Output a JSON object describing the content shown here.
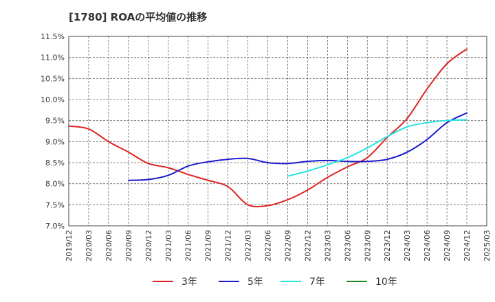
{
  "chart_data": {
    "type": "line",
    "title": "[1780]  ROAの平均値の推移",
    "xlabel": "",
    "ylabel": "",
    "y_ticks": [
      "7.0%",
      "7.5%",
      "8.0%",
      "8.5%",
      "9.0%",
      "9.5%",
      "10.0%",
      "10.5%",
      "11.0%",
      "11.5%"
    ],
    "ylim": [
      7.0,
      11.5
    ],
    "x_ticks": [
      "2019/12",
      "2020/03",
      "2020/06",
      "2020/09",
      "2020/12",
      "2021/03",
      "2021/06",
      "2021/09",
      "2021/12",
      "2022/03",
      "2022/06",
      "2022/09",
      "2022/12",
      "2023/03",
      "2023/06",
      "2023/09",
      "2023/12",
      "2024/03",
      "2024/06",
      "2024/09",
      "2024/12",
      "2025/03"
    ],
    "grid": true,
    "legend_position": "bottom",
    "series": [
      {
        "name": "3年",
        "color": "#dd2222",
        "points": [
          [
            "2019/12",
            9.37
          ],
          [
            "2020/03",
            9.3
          ],
          [
            "2020/06",
            9.0
          ],
          [
            "2020/09",
            8.75
          ],
          [
            "2020/12",
            8.48
          ],
          [
            "2021/03",
            8.38
          ],
          [
            "2021/06",
            8.22
          ],
          [
            "2021/09",
            8.08
          ],
          [
            "2021/12",
            7.93
          ],
          [
            "2022/03",
            7.5
          ],
          [
            "2022/06",
            7.48
          ],
          [
            "2022/09",
            7.62
          ],
          [
            "2022/12",
            7.85
          ],
          [
            "2023/03",
            8.15
          ],
          [
            "2023/06",
            8.4
          ],
          [
            "2023/09",
            8.62
          ],
          [
            "2023/12",
            9.1
          ],
          [
            "2024/03",
            9.55
          ],
          [
            "2024/06",
            10.25
          ],
          [
            "2024/09",
            10.85
          ],
          [
            "2024/12",
            11.2
          ]
        ]
      },
      {
        "name": "5年",
        "color": "#1a1acc",
        "points": [
          [
            "2020/09",
            8.08
          ],
          [
            "2020/12",
            8.1
          ],
          [
            "2021/03",
            8.2
          ],
          [
            "2021/06",
            8.42
          ],
          [
            "2021/09",
            8.52
          ],
          [
            "2021/12",
            8.58
          ],
          [
            "2022/03",
            8.6
          ],
          [
            "2022/06",
            8.5
          ],
          [
            "2022/09",
            8.48
          ],
          [
            "2022/12",
            8.53
          ],
          [
            "2023/03",
            8.55
          ],
          [
            "2023/06",
            8.53
          ],
          [
            "2023/09",
            8.53
          ],
          [
            "2023/12",
            8.58
          ],
          [
            "2024/03",
            8.75
          ],
          [
            "2024/06",
            9.05
          ],
          [
            "2024/09",
            9.45
          ],
          [
            "2024/12",
            9.68
          ]
        ]
      },
      {
        "name": "7年",
        "color": "#22e5e5",
        "points": [
          [
            "2022/09",
            8.18
          ],
          [
            "2022/12",
            8.3
          ],
          [
            "2023/03",
            8.45
          ],
          [
            "2023/06",
            8.62
          ],
          [
            "2023/09",
            8.85
          ],
          [
            "2023/12",
            9.12
          ],
          [
            "2024/03",
            9.35
          ],
          [
            "2024/06",
            9.45
          ],
          [
            "2024/09",
            9.5
          ],
          [
            "2024/12",
            9.52
          ]
        ]
      },
      {
        "name": "10年",
        "color": "#228822",
        "points": []
      }
    ]
  }
}
